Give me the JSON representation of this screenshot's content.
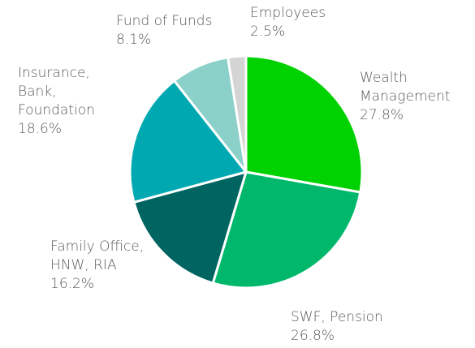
{
  "chart_data": {
    "type": "pie",
    "categories": [
      "Wealth\nManagement",
      "SWF, Pension",
      "Family Office,\nHNW, RIA",
      "Insurance,\nBank,\nFoundation",
      "Fund of Funds",
      "Employees"
    ],
    "values": [
      27.8,
      26.8,
      16.2,
      18.6,
      8.1,
      2.5
    ],
    "value_labels": [
      "27.8%",
      "26.8%",
      "16.2%",
      "18.6%",
      "8.1%",
      "2.5%"
    ],
    "colors": [
      "#00d100",
      "#00b86c",
      "#006461",
      "#00a9b2",
      "#8bd1c9",
      "#d4d4d4"
    ]
  }
}
